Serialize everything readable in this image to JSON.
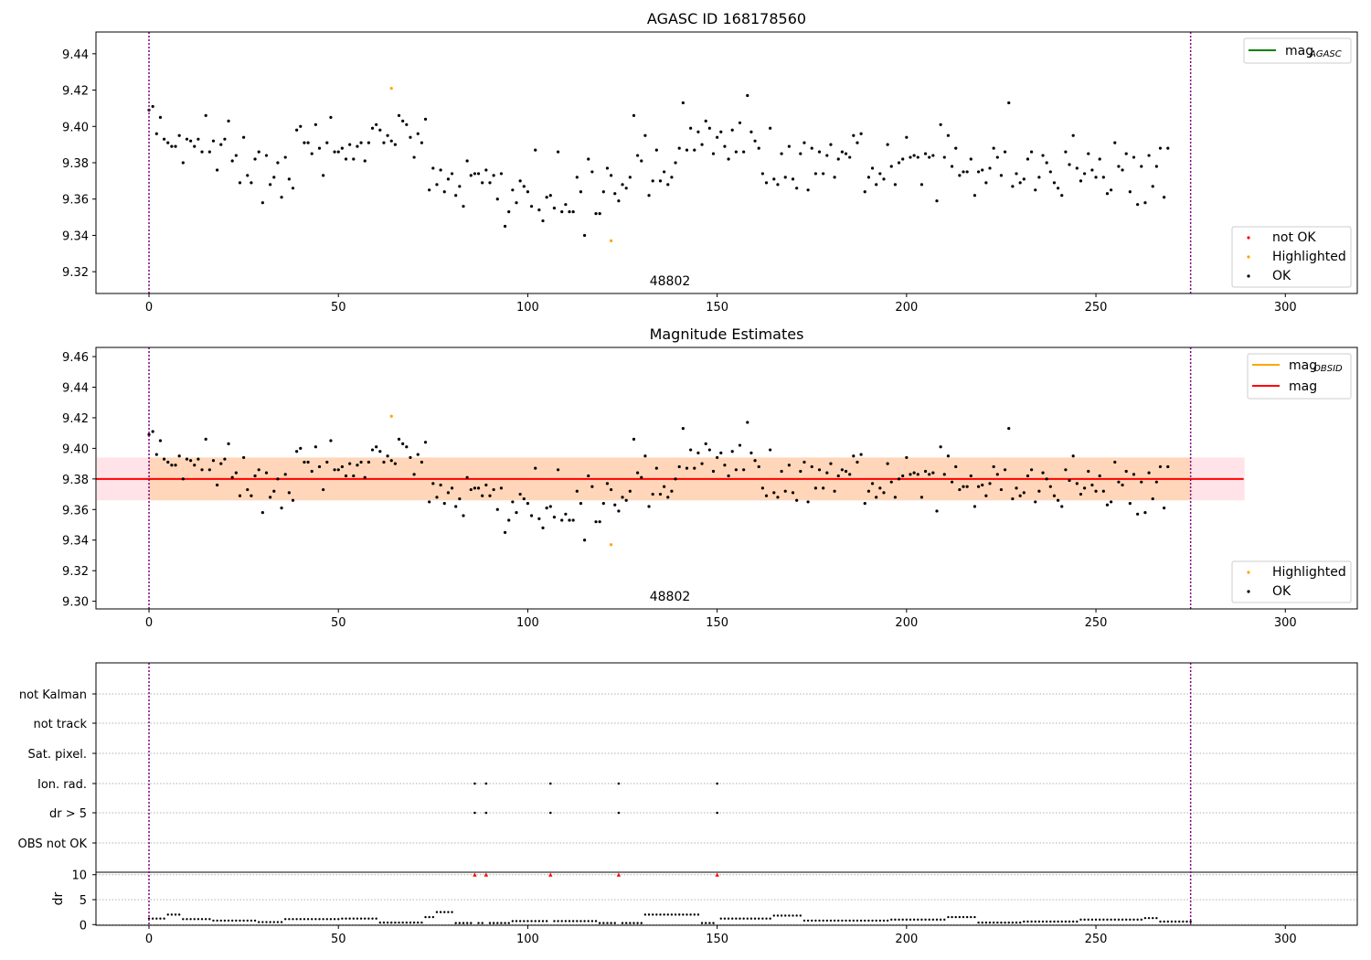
{
  "chart_data": [
    {
      "type": "scatter",
      "title": "AGASC ID 168178560",
      "annotation": "48802",
      "xlim": [
        -14,
        319
      ],
      "ylim": [
        9.308,
        9.452
      ],
      "xticks": [
        0,
        50,
        100,
        150,
        200,
        250,
        300
      ],
      "yticks": [
        9.32,
        9.34,
        9.36,
        9.38,
        9.4,
        9.42,
        9.44
      ],
      "vlines": [
        0,
        275
      ],
      "vline_color": "#800080",
      "legend_lines": [
        {
          "label": "mag",
          "sub": "AGASC",
          "color": "#008000"
        }
      ],
      "legend_markers": [
        {
          "label": "not OK",
          "color": "#ff0000"
        },
        {
          "label": "Highlighted",
          "color": "#ffa500"
        },
        {
          "label": "OK",
          "color": "#000000"
        }
      ],
      "highlighted": [
        [
          64,
          9.421
        ],
        [
          122,
          9.337
        ]
      ],
      "ok_y": [
        9.409,
        9.411,
        9.396,
        9.405,
        9.393,
        9.391,
        9.389,
        9.389,
        9.395,
        9.38,
        9.393,
        9.392,
        9.389,
        9.393,
        9.386,
        9.406,
        9.386,
        9.392,
        9.376,
        9.39,
        9.393,
        9.403,
        9.381,
        9.384,
        9.369,
        9.394,
        9.373,
        9.369,
        9.382,
        9.386,
        9.358,
        9.384,
        9.368,
        9.372,
        9.38,
        9.361,
        9.383,
        9.371,
        9.366,
        9.398,
        9.4,
        9.391,
        9.391,
        9.385,
        9.401,
        9.388,
        9.373,
        9.391,
        9.405,
        9.386,
        9.386,
        9.388,
        9.382,
        9.39,
        9.382,
        9.389,
        9.391,
        9.381,
        9.391,
        9.399,
        9.401,
        9.398,
        9.391,
        9.395,
        9.392,
        9.39,
        9.406,
        9.403,
        9.401,
        9.394,
        9.383,
        9.396,
        9.391,
        9.404,
        9.365,
        9.377,
        9.368,
        9.376,
        9.364,
        9.371,
        9.374,
        9.362,
        9.367,
        9.356,
        9.381,
        9.373,
        9.374,
        9.374,
        9.369,
        9.376,
        9.369,
        9.373,
        9.36,
        9.374,
        9.345,
        9.353,
        9.365,
        9.358,
        9.37,
        9.367,
        9.364,
        9.356,
        9.387,
        9.354,
        9.348,
        9.361,
        9.362,
        9.355,
        9.386,
        9.353,
        9.357,
        9.353,
        9.353,
        9.372,
        9.364,
        9.34,
        9.382,
        9.375,
        9.352,
        9.352,
        9.364,
        9.377,
        9.373,
        9.363,
        9.359,
        9.368,
        9.366,
        9.372,
        9.406,
        9.384,
        9.381,
        9.395,
        9.362,
        9.37,
        9.387,
        9.37,
        9.375,
        9.368,
        9.372,
        9.38,
        9.388,
        9.413,
        9.387,
        9.399,
        9.387,
        9.397,
        9.39,
        9.403,
        9.399,
        9.385,
        9.394,
        9.397,
        9.389,
        9.382,
        9.398,
        9.386,
        9.402,
        9.386,
        9.417,
        9.397,
        9.392,
        9.388,
        9.374,
        9.369,
        9.399,
        9.371,
        9.368,
        9.385,
        9.372,
        9.389,
        9.371,
        9.366,
        9.385,
        9.391,
        9.365,
        9.388,
        9.374,
        9.386,
        9.374,
        9.384,
        9.39,
        9.372,
        9.382,
        9.386,
        9.385,
        9.383,
        9.395,
        9.391,
        9.396,
        9.364,
        9.372,
        9.377,
        9.368,
        9.374,
        9.371,
        9.39,
        9.378,
        9.368,
        9.38,
        9.382,
        9.394,
        9.383,
        9.384,
        9.383,
        9.368,
        9.385,
        9.383,
        9.384,
        9.359,
        9.401,
        9.383,
        9.395,
        9.378,
        9.388,
        9.373,
        9.375,
        9.375,
        9.382,
        9.362,
        9.375,
        9.376,
        9.369,
        9.377,
        9.388,
        9.383,
        9.373,
        9.386,
        9.413,
        9.367,
        9.374,
        9.369,
        9.371,
        9.382,
        9.386,
        9.365,
        9.372,
        9.384,
        9.38,
        9.375,
        9.369,
        9.366,
        9.362,
        9.386,
        9.379,
        9.395,
        9.377,
        9.37,
        9.374,
        9.385,
        9.376,
        9.372,
        9.382,
        9.372,
        9.363,
        9.365,
        9.391,
        9.378,
        9.376,
        9.385,
        9.364,
        9.383,
        9.357,
        9.378,
        9.358,
        9.384,
        9.367,
        9.378,
        9.388,
        9.361,
        9.388
      ]
    },
    {
      "type": "scatter",
      "title": "Magnitude Estimates",
      "annotation": "48802",
      "xlim": [
        -14,
        319
      ],
      "ylim": [
        9.295,
        9.466
      ],
      "xticks": [
        0,
        50,
        100,
        150,
        200,
        250,
        300
      ],
      "yticks": [
        9.3,
        9.32,
        9.34,
        9.36,
        9.38,
        9.4,
        9.42,
        9.44,
        9.46
      ],
      "vlines": [
        0,
        275
      ],
      "vline_color": "#800080",
      "mag": 9.38,
      "mag_band": [
        9.366,
        9.394
      ],
      "mag_band_x": [
        -14,
        289
      ],
      "obsid_band_x": [
        0,
        275
      ],
      "legend_lines": [
        {
          "label": "mag",
          "sub": "OBSID",
          "color": "#ffa500"
        },
        {
          "label": "mag",
          "sub": "",
          "color": "#ff0000"
        }
      ],
      "legend_markers": [
        {
          "label": "Highlighted",
          "color": "#ffa500"
        },
        {
          "label": "OK",
          "color": "#000000"
        }
      ],
      "highlighted": [
        [
          64,
          9.421
        ],
        [
          122,
          9.337
        ]
      ]
    },
    {
      "type": "scatter",
      "title": "",
      "xlim": [
        -14,
        319
      ],
      "xticks": [
        0,
        50,
        100,
        150,
        200,
        250,
        300
      ],
      "vlines": [
        0,
        275
      ],
      "vline_color": "#800080",
      "flag_labels": [
        "not Kalman",
        "not track",
        "Sat. pixel.",
        "Ion. rad.",
        "dr > 5",
        "OBS not OK"
      ],
      "flag_points": {
        "Ion. rad.": [
          86,
          89,
          106,
          124,
          150
        ],
        "dr > 5": [
          86,
          89,
          106,
          124,
          150
        ]
      },
      "dr_ylabel": "dr",
      "dr_ylim": [
        -0.5,
        10.5
      ],
      "dr_yticks": [
        0,
        5,
        10
      ],
      "dr_outliers_x": [
        86,
        89,
        106,
        124,
        150
      ],
      "dr_outlier_value": 10,
      "dr_segments": [
        {
          "from": 0,
          "to": 4,
          "level": 1.2
        },
        {
          "from": 5,
          "to": 8,
          "level": 2.0
        },
        {
          "from": 9,
          "to": 16,
          "level": 1.1
        },
        {
          "from": 17,
          "to": 28,
          "level": 0.8
        },
        {
          "from": 29,
          "to": 35,
          "level": 0.5
        },
        {
          "from": 36,
          "to": 50,
          "level": 1.1
        },
        {
          "from": 51,
          "to": 60,
          "level": 1.2
        },
        {
          "from": 61,
          "to": 72,
          "level": 0.4
        },
        {
          "from": 73,
          "to": 75,
          "level": 1.5
        },
        {
          "from": 76,
          "to": 80,
          "level": 2.5
        },
        {
          "from": 81,
          "to": 86,
          "level": 0.3
        },
        {
          "from": 87,
          "to": 95,
          "level": 0.3
        },
        {
          "from": 96,
          "to": 118,
          "level": 0.7
        },
        {
          "from": 119,
          "to": 130,
          "level": 0.3
        },
        {
          "from": 131,
          "to": 145,
          "level": 2.0
        },
        {
          "from": 146,
          "to": 150,
          "level": 0.3
        },
        {
          "from": 151,
          "to": 164,
          "level": 1.2
        },
        {
          "from": 165,
          "to": 172,
          "level": 1.8
        },
        {
          "from": 173,
          "to": 195,
          "level": 0.8
        },
        {
          "from": 196,
          "to": 210,
          "level": 1.0
        },
        {
          "from": 211,
          "to": 218,
          "level": 1.5
        },
        {
          "from": 219,
          "to": 230,
          "level": 0.4
        },
        {
          "from": 231,
          "to": 245,
          "level": 0.6
        },
        {
          "from": 246,
          "to": 262,
          "level": 1.0
        },
        {
          "from": 263,
          "to": 266,
          "level": 1.3
        },
        {
          "from": 267,
          "to": 275,
          "level": 0.6
        }
      ]
    }
  ]
}
